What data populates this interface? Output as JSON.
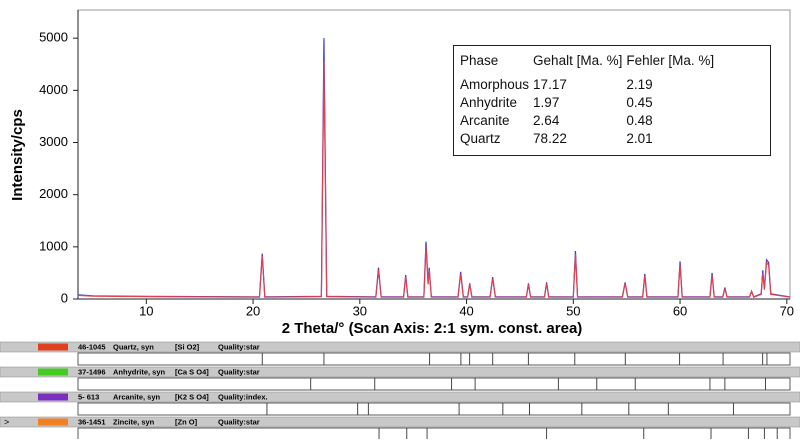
{
  "chart_data": {
    "type": "line",
    "x_label": "2 Theta/°  (Scan Axis: 2:1 sym. const. area)",
    "y_label": "Intensity/cps",
    "xlim": [
      3.6,
      70.3
    ],
    "ylim": [
      0,
      5540
    ],
    "xticks": [
      10,
      20,
      30,
      40,
      50,
      60,
      70
    ],
    "yticks": [
      0,
      1000,
      2000,
      3000,
      4000,
      5000
    ],
    "x": [
      3.6,
      5,
      10,
      15,
      20.6,
      20.86,
      21.1,
      26.4,
      26.64,
      26.9,
      31.5,
      31.75,
      32.0,
      34.1,
      34.3,
      34.5,
      36.0,
      36.2,
      36.4,
      36.5,
      36.7,
      39.2,
      39.45,
      39.7,
      40.1,
      40.3,
      40.5,
      42.2,
      42.45,
      42.7,
      45.6,
      45.8,
      46.0,
      47.3,
      47.5,
      47.7,
      50.0,
      50.2,
      50.4,
      54.6,
      54.85,
      55.1,
      56.5,
      56.7,
      56.9,
      59.8,
      60.0,
      60.2,
      62.8,
      63.0,
      63.2,
      64.0,
      64.2,
      64.4,
      66.5,
      66.7,
      66.9,
      67.6,
      67.75,
      67.9,
      68.1,
      68.3,
      68.5,
      70.3
    ],
    "series": [
      {
        "color": "#3a3ad0",
        "values": [
          80,
          60,
          50,
          45,
          40,
          870,
          40,
          50,
          5000,
          50,
          40,
          600,
          40,
          40,
          460,
          40,
          40,
          1100,
          300,
          600,
          40,
          40,
          520,
          40,
          40,
          300,
          40,
          40,
          420,
          40,
          40,
          300,
          40,
          40,
          320,
          40,
          40,
          920,
          40,
          40,
          320,
          40,
          40,
          480,
          40,
          40,
          720,
          40,
          40,
          500,
          40,
          40,
          220,
          40,
          40,
          150,
          40,
          100,
          550,
          200,
          750,
          700,
          100,
          40
        ]
      },
      {
        "color": "#e04050",
        "values": [
          70,
          55,
          45,
          40,
          35,
          820,
          35,
          45,
          4550,
          45,
          35,
          560,
          35,
          35,
          430,
          35,
          35,
          1000,
          280,
          560,
          35,
          35,
          480,
          35,
          35,
          280,
          35,
          35,
          390,
          35,
          35,
          280,
          35,
          35,
          300,
          35,
          35,
          860,
          35,
          35,
          300,
          35,
          35,
          440,
          35,
          35,
          660,
          35,
          35,
          460,
          35,
          35,
          200,
          35,
          35,
          140,
          35,
          90,
          500,
          180,
          700,
          650,
          90,
          35
        ]
      }
    ],
    "table": {
      "header": [
        "Phase",
        "Gehalt [Ma. %]",
        "Fehler [Ma. %]"
      ],
      "rows": [
        [
          "Amorphous",
          17.17,
          2.19
        ],
        [
          "Anhydrite",
          1.97,
          0.45
        ],
        [
          "Arcanite",
          2.64,
          0.48
        ],
        [
          "Quartz",
          78.22,
          2.01
        ]
      ]
    },
    "reference_patterns": [
      {
        "code": "46-1045",
        "name": "Quartz, syn",
        "formula": "[Si O2]",
        "quality": "Quality:star",
        "color": "#e0401e",
        "lines": [
          20.86,
          26.64,
          36.54,
          39.47,
          40.29,
          42.45,
          45.79,
          50.14,
          54.87,
          59.96,
          64.03,
          67.74,
          68.14
        ]
      },
      {
        "code": "37-1496",
        "name": "Anhydrite, syn",
        "formula": "[Ca S O4]",
        "quality": "Quality:star",
        "color": "#44cc22",
        "lines": [
          25.4,
          31.4,
          38.6,
          40.8,
          48.6,
          52.2,
          55.8,
          62.8,
          64.2,
          68.0
        ]
      },
      {
        "code": "5- 613",
        "name": "Arcanite, syn",
        "formula": "[K2 S O4]",
        "quality": "Quality:index.",
        "color": "#7a2fc0",
        "lines": [
          21.3,
          29.8,
          30.8,
          39.3,
          43.4,
          45.9,
          50.8,
          55.2,
          58.9,
          65.0
        ]
      },
      {
        "marker": ">",
        "code": "36-1451",
        "name": "Zincite, syn",
        "formula": "[Zn O]",
        "quality": "Quality:star",
        "color": "#f08020",
        "lines": [
          31.8,
          34.4,
          36.3,
          47.5,
          56.6,
          62.9,
          66.4,
          67.9,
          69.1
        ]
      }
    ]
  }
}
